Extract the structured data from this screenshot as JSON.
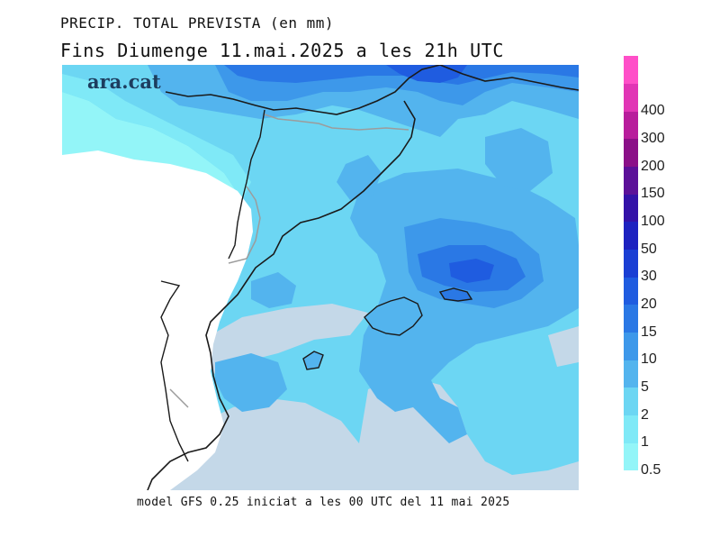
{
  "header": {
    "title": "PRECIP. TOTAL PREVISTA (en mm)",
    "subtitle": "Fins Diumenge 11.mai.2025 a les 21h UTC"
  },
  "footer": {
    "model_note": "model GFS 0.25 iniciat a les 00 UTC del 11 mai 2025"
  },
  "logo": {
    "text": "ara.cat"
  },
  "legend": {
    "unit": "mm",
    "levels": [
      {
        "label": "0.5",
        "color": "#93f5f8"
      },
      {
        "label": "1",
        "color": "#7fe9f7"
      },
      {
        "label": "2",
        "color": "#6cd6f3"
      },
      {
        "label": "5",
        "color": "#53b4ee"
      },
      {
        "label": "10",
        "color": "#3d98ea"
      },
      {
        "label": "15",
        "color": "#2a78e5"
      },
      {
        "label": "20",
        "color": "#1f5ce0"
      },
      {
        "label": "30",
        "color": "#1a3fd4"
      },
      {
        "label": "50",
        "color": "#1d22c0"
      },
      {
        "label": "100",
        "color": "#3312a8"
      },
      {
        "label": "150",
        "color": "#5c1199"
      },
      {
        "label": "200",
        "color": "#8b1088"
      },
      {
        "label": "300",
        "color": "#b81d9c"
      },
      {
        "label": "400",
        "color": "#e135b5"
      },
      {
        "label": "",
        "color": "#ff4fc8"
      }
    ]
  },
  "colors": {
    "land_dry": "#ffffff",
    "sea_dry": "#c4d8e8",
    "coastline": "#1a1a1a",
    "borders": "#9c9c9c"
  }
}
